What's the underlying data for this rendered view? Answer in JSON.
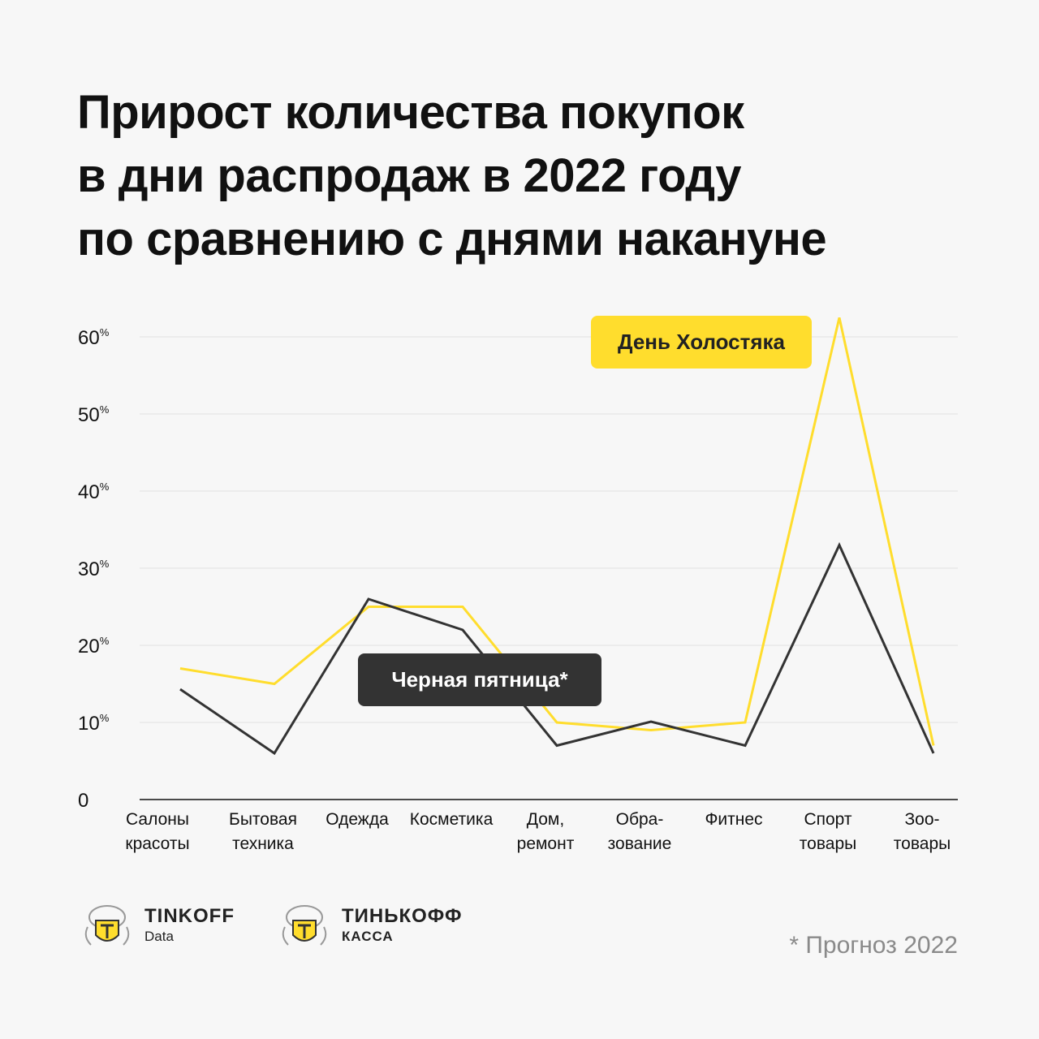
{
  "title_lines": [
    "Прирост количества покупок",
    "в дни распродаж в 2022 году",
    "по сравнению с днями накануне"
  ],
  "chart_data": {
    "type": "line",
    "categories": [
      [
        "Салоны",
        "красоты"
      ],
      [
        "Бытовая",
        "техника"
      ],
      [
        "Одежда"
      ],
      [
        "Косметика"
      ],
      [
        "Дом,",
        "ремонт"
      ],
      [
        "Обра-",
        "зование"
      ],
      [
        "Фитнес"
      ],
      [
        "Спорт",
        "товары"
      ],
      [
        "Зоо-",
        "товары"
      ]
    ],
    "series": [
      {
        "name": "День Холостяка",
        "color": "#ffdd2d",
        "values": [
          17,
          15,
          25,
          25,
          10,
          9,
          10,
          62.5,
          7
        ]
      },
      {
        "name": "Черная пятница*",
        "color": "#333333",
        "values": [
          14.3,
          6,
          26,
          22,
          7,
          10.1,
          7,
          33,
          6
        ]
      }
    ],
    "ylim": [
      0,
      60
    ],
    "yticks": [
      {
        "value": 0,
        "label": "0",
        "sup": ""
      },
      {
        "value": 10,
        "label": "10",
        "sup": "%"
      },
      {
        "value": 20,
        "label": "20",
        "sup": "%"
      },
      {
        "value": 30,
        "label": "30",
        "sup": "%"
      },
      {
        "value": 40,
        "label": "40",
        "sup": "%"
      },
      {
        "value": 50,
        "label": "50",
        "sup": "%"
      },
      {
        "value": 60,
        "label": "60",
        "sup": "%"
      }
    ],
    "grid": true
  },
  "logos": [
    {
      "icon": "tinkoff-crest-icon",
      "main": "TINKOFF",
      "sub": "Data"
    },
    {
      "icon": "tinkoff-crest-icon",
      "main": "ТИНЬКОФФ",
      "sub": "КАССА"
    }
  ],
  "footnote": "* Прогноз 2022"
}
